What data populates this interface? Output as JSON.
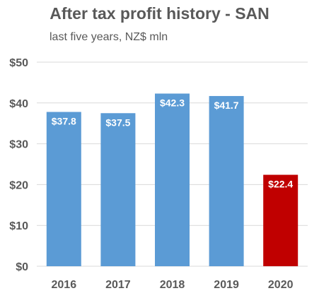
{
  "chart_data": {
    "type": "bar",
    "title": "After tax profit history - SAN",
    "subtitle": "last five years, NZ$ mln",
    "categories": [
      "2016",
      "2017",
      "2018",
      "2019",
      "2020"
    ],
    "values": [
      37.8,
      37.5,
      42.3,
      41.7,
      22.4
    ],
    "data_labels": [
      "$37.8",
      "$37.5",
      "$42.3",
      "$41.7",
      "$22.4"
    ],
    "y_ticks": [
      0,
      10,
      20,
      30,
      40,
      50
    ],
    "y_tick_labels": [
      "$0",
      "$10",
      "$20",
      "$30",
      "$40",
      "$50"
    ],
    "ylim": [
      0,
      50
    ],
    "grid": true,
    "legend": "none",
    "xlabel": "",
    "ylabel": "",
    "colors": {
      "default_bar": "#5b9bd5",
      "highlight_bar": "#c00000",
      "gridline": "#d9d9d9",
      "text": "#595959"
    },
    "highlight_index": 4
  }
}
